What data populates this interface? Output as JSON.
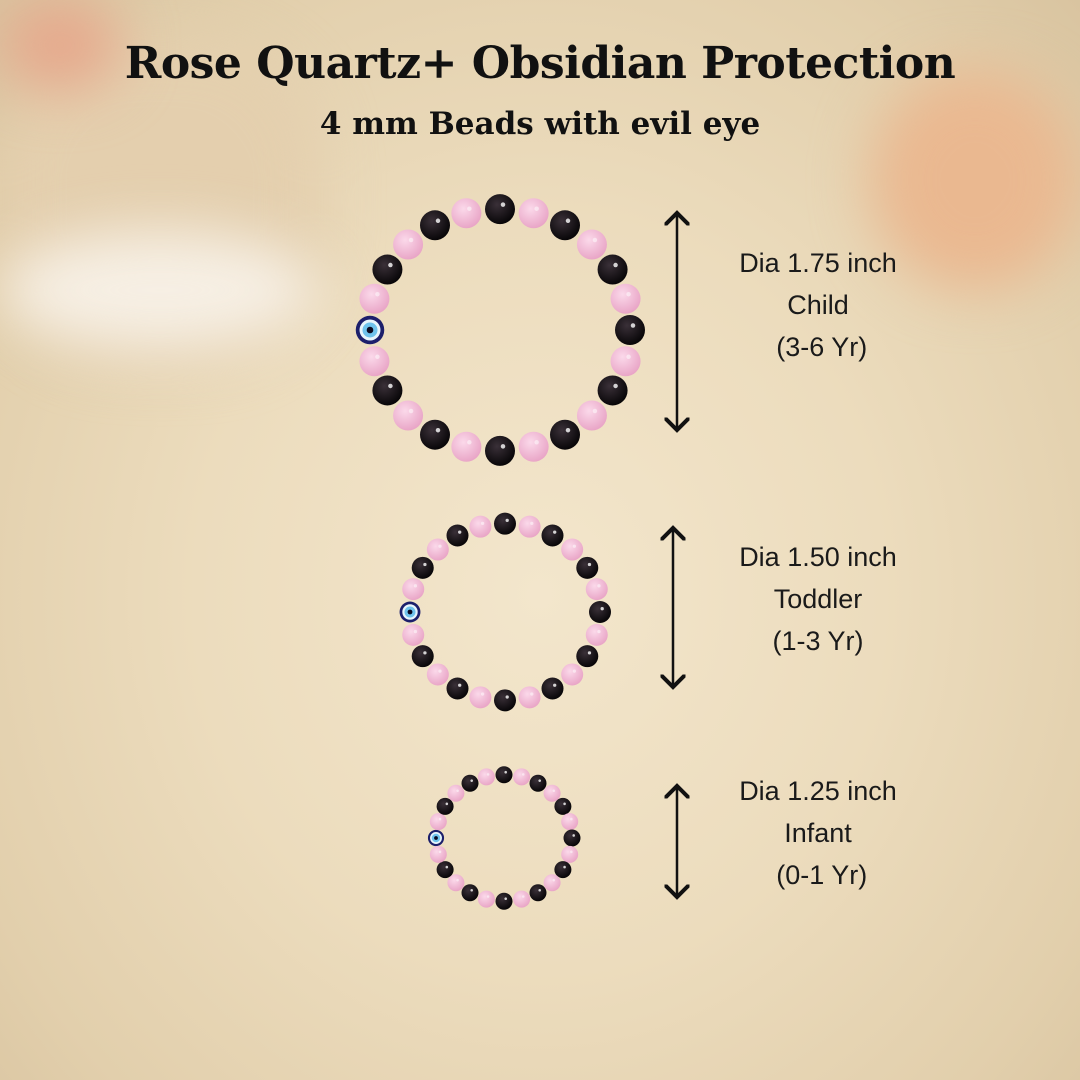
{
  "title": "Rose Quartz+ Obsidian Protection",
  "subtitle": "4 mm Beads with evil eye",
  "colors": {
    "rose_quartz": "#f0b6d2",
    "obsidian": "#141014",
    "evil_eye_outer": "#1c1f6b",
    "evil_eye_iris": "#6fc3ec",
    "text": "#111111"
  },
  "sizes": [
    {
      "diameter": "Dia 1.75 inch",
      "category": "Child",
      "age": " (3-6 Yr)"
    },
    {
      "diameter": "Dia 1.50 inch",
      "category": "Toddler",
      "age": "(1-3 Yr)"
    },
    {
      "diameter": "Dia 1.25 inch",
      "category": "Infant",
      "age": " (0-1 Yr)"
    }
  ]
}
